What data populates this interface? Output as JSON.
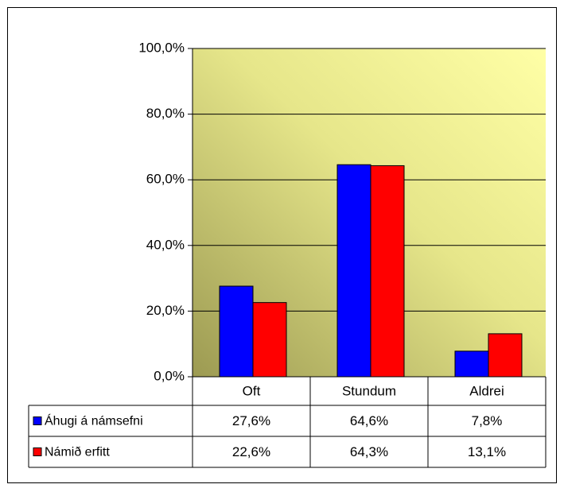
{
  "chart_data": {
    "type": "bar",
    "categories": [
      "Oft",
      "Stundum",
      "Aldrei"
    ],
    "series": [
      {
        "name": "Áhugi á námsefni",
        "color": "#0000ff",
        "values": [
          27.6,
          64.6,
          7.8
        ],
        "value_labels": [
          "27,6%",
          "64,6%",
          "7,8%"
        ]
      },
      {
        "name": "Námið erfitt",
        "color": "#ff0000",
        "values": [
          22.6,
          64.3,
          13.1
        ],
        "value_labels": [
          "22,6%",
          "64,3%",
          "13,1%"
        ]
      }
    ],
    "ylim": [
      0,
      100
    ],
    "yticks": [
      {
        "value": 0,
        "label": "0,0%"
      },
      {
        "value": 20,
        "label": "20,0%"
      },
      {
        "value": 40,
        "label": "40,0%"
      },
      {
        "value": 60,
        "label": "60,0%"
      },
      {
        "value": 80,
        "label": "80,0%"
      },
      {
        "value": 100,
        "label": "100,0%"
      }
    ],
    "grid": true
  }
}
